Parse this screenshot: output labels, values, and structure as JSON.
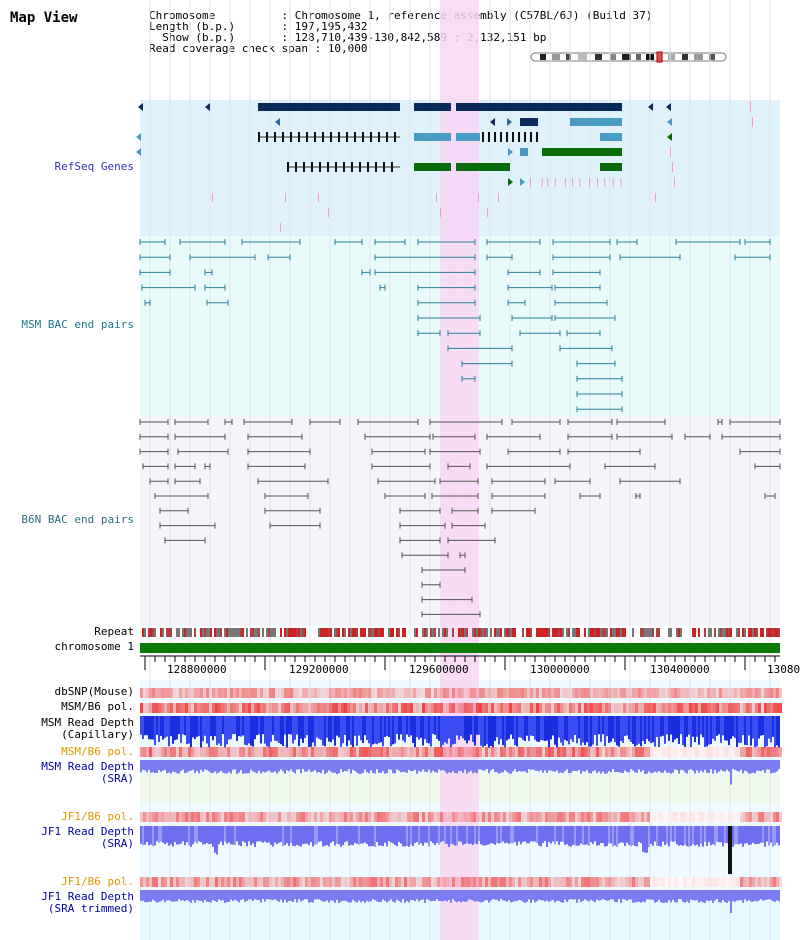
{
  "header": {
    "title": "Map View",
    "info_rows": [
      {
        "key": "Chromosome         ",
        "sep": " : ",
        "value": "Chromosome 1, reference assembly (C57BL/6J) (Build 37)"
      },
      {
        "key": "Length (b.p.)      ",
        "sep": " : ",
        "value": "197,195,432"
      },
      {
        "key": "  Show (b.p.)      ",
        "sep": " : ",
        "value": "128,710,439-130,842,589 : 2,132,151 bp"
      },
      {
        "key": "Read coverage check span",
        "sep": " : ",
        "value": "10,000"
      }
    ]
  },
  "tracks": [
    {
      "id": "refseq",
      "label": "RefSeq Genes",
      "color": "#3333bb"
    },
    {
      "id": "msm_bac",
      "label": "MSM BAC end pairs",
      "color": "#1f7a8c"
    },
    {
      "id": "b6n_bac",
      "label": "B6N BAC end pairs",
      "color": "#2f6b7a"
    },
    {
      "id": "repeat",
      "label": "Repeat",
      "color": "#000000"
    },
    {
      "id": "chromosome",
      "label": "chromosome 1",
      "color": "#000000"
    },
    {
      "id": "dbsnp",
      "label": "dbSNP(Mouse)",
      "color": "#000000"
    },
    {
      "id": "msm_pol1",
      "label": "MSM/B6 pol.",
      "color": "#000000"
    },
    {
      "id": "msm_depth_cap",
      "label": "MSM Read Depth\n(Capillary)",
      "color": "#000000"
    },
    {
      "id": "msm_pol2",
      "label": "MSM/B6 pol.",
      "color": "#e69500"
    },
    {
      "id": "msm_depth_sra",
      "label": "MSM Read Depth\n(SRA)",
      "color": "#0000aa"
    },
    {
      "id": "jf1_pol1",
      "label": "JF1/B6 pol.",
      "color": "#e69500"
    },
    {
      "id": "jf1_depth_sra",
      "label": "JF1 Read Depth\n(SRA)",
      "color": "#0000aa"
    },
    {
      "id": "jf1_pol2",
      "label": "JF1/B6 pol.",
      "color": "#e69500"
    },
    {
      "id": "jf1_depth_trim",
      "label": "JF1 Read Depth\n(SRA trimmed)",
      "color": "#0000aa"
    }
  ],
  "axis": {
    "ticks": [
      "128800000",
      "129200000",
      "129600000",
      "130000000",
      "130400000",
      "13080"
    ]
  },
  "colors": {
    "refseq_bg": "#dff1fb",
    "msm_bg": "#e8fbfb",
    "b6n_bg": "#f4f4fa",
    "highlight": "#f8d6f4",
    "gene_dark": "#0b2a5c",
    "gene_mid": "#4a9bc4",
    "gene_green": "#0a6b0a",
    "chromosome_bar": "#0b7a0b",
    "msm_line": "#2a7f9a",
    "b6n_line": "#555555"
  }
}
